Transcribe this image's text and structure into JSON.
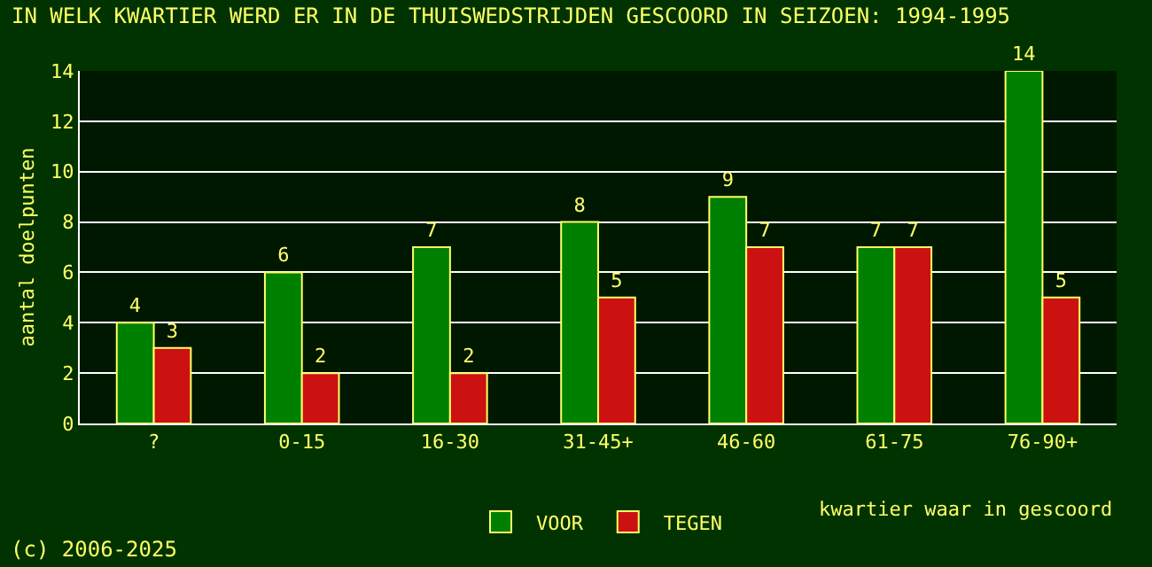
{
  "chart_data": {
    "type": "bar",
    "title": "IN WELK KWARTIER WERD ER IN DE THUISWEDSTRIJDEN GESCOORD IN SEIZOEN: 1994-1995",
    "xlabel": "kwartier waar in gescoord",
    "ylabel": "aantal doelpunten",
    "categories": [
      "?",
      "0-15",
      "16-30",
      "31-45+",
      "46-60",
      "61-75",
      "76-90+"
    ],
    "series": [
      {
        "name": "VOOR",
        "color": "#008000",
        "values": [
          4,
          6,
          7,
          8,
          9,
          7,
          14
        ]
      },
      {
        "name": "TEGEN",
        "color": "#cc1111",
        "values": [
          3,
          2,
          2,
          5,
          7,
          7,
          5
        ]
      }
    ],
    "ylim": [
      0,
      14
    ],
    "yticks": [
      0,
      2,
      4,
      6,
      8,
      10,
      12,
      14
    ],
    "grid": "y",
    "legend": "bottom",
    "data_labels": true,
    "annotations": [
      "(c) 2006-2025"
    ]
  }
}
